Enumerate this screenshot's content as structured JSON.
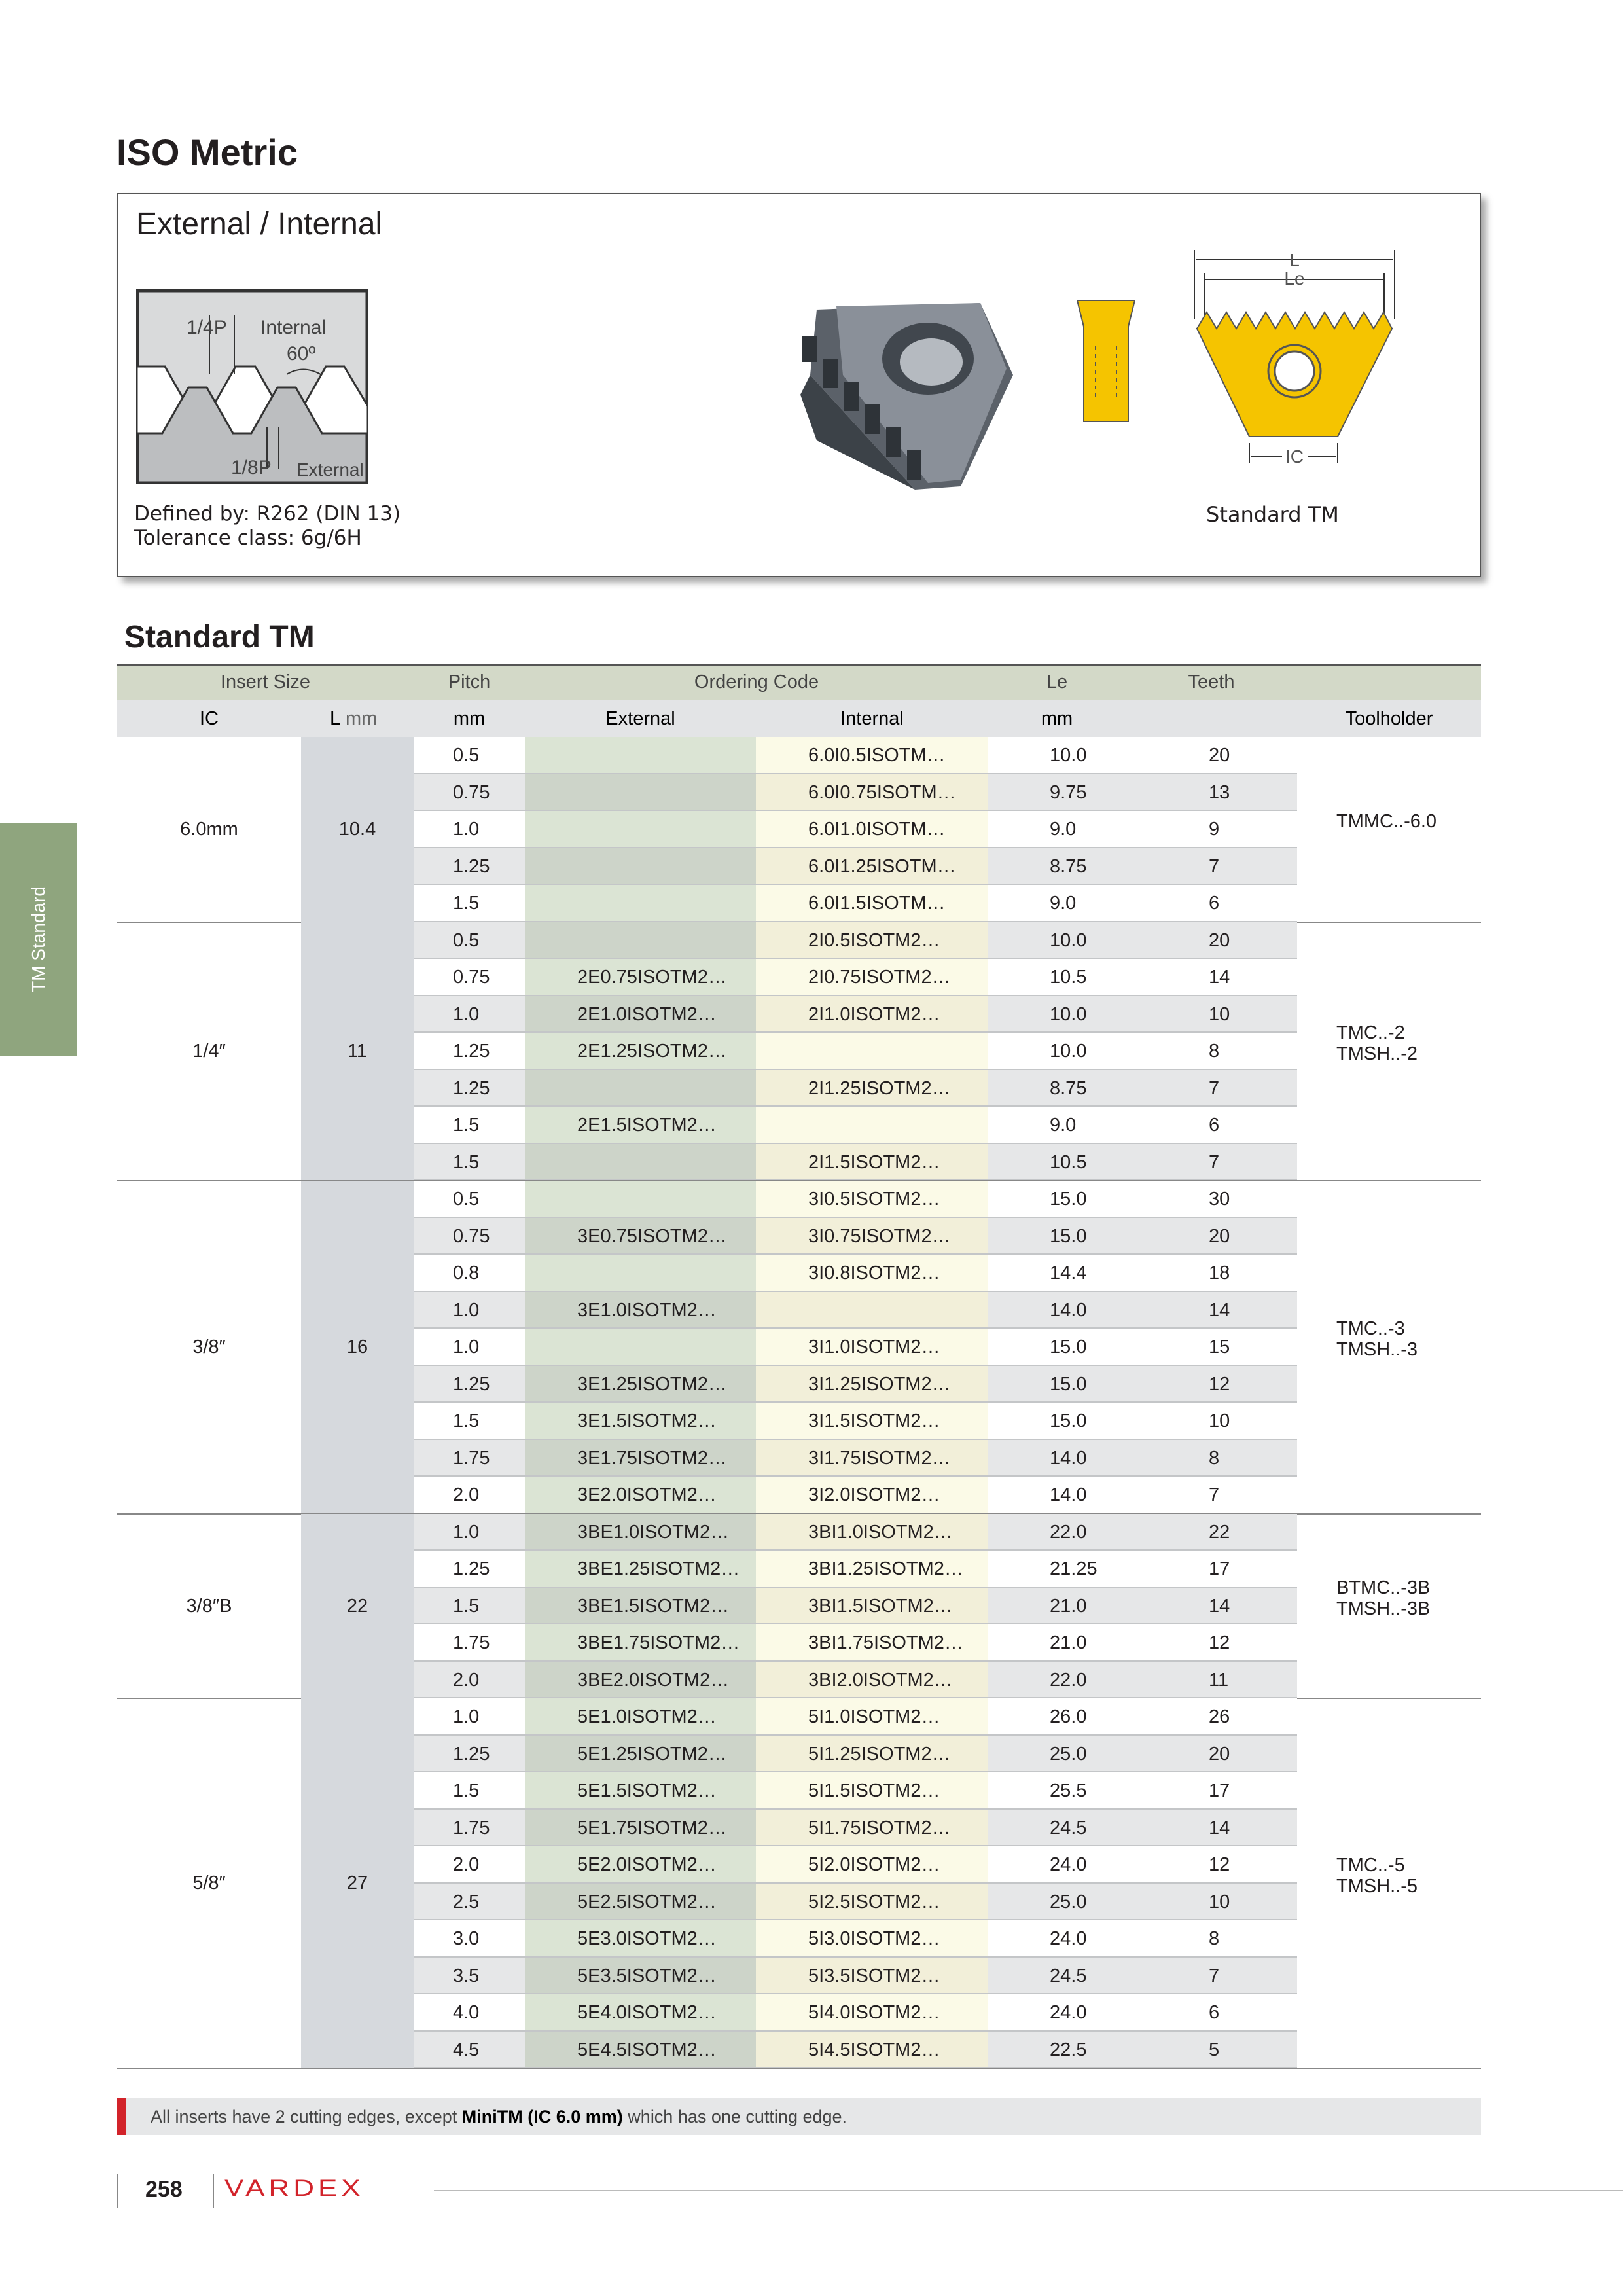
{
  "header": {
    "title": "ISO Metric"
  },
  "box": {
    "title": "External / Internal",
    "diagram": {
      "quarter_pitch": "1/4P",
      "internal": "Internal",
      "angle": "60º",
      "eighth_pitch": "1/8P",
      "external": "External"
    },
    "defined_by": "Defined by: R262 (DIN 13)",
    "tolerance": "Tolerance class: 6g/6H",
    "insert": {
      "l": "L",
      "le": "Le",
      "ic": "IC",
      "caption": "Standard TM"
    }
  },
  "side_tab": "TM Standard",
  "table": {
    "title": "Standard TM",
    "header1": {
      "insert_size": "Insert Size",
      "pitch": "Pitch",
      "ordering_code": "Ordering Code",
      "le": "Le",
      "teeth": "Teeth"
    },
    "header2": {
      "ic": "IC",
      "l": "L",
      "l_unit": "mm",
      "pitch_unit": "mm",
      "external": "External",
      "internal": "Internal",
      "le_unit": "mm",
      "toolholder": "Toolholder"
    },
    "groups": [
      {
        "ic": "6.0mm",
        "l": "10.4",
        "toolholder": [
          "TMMC..-6.0"
        ],
        "rows": [
          {
            "pitch": "0.5",
            "external": null,
            "internal": "6.0I0.5ISOTM…",
            "le": "10.0",
            "teeth": "20"
          },
          {
            "pitch": "0.75",
            "external": null,
            "internal": "6.0I0.75ISOTM…",
            "le": "9.75",
            "teeth": "13"
          },
          {
            "pitch": "1.0",
            "external": null,
            "internal": "6.0I1.0ISOTM…",
            "le": "9.0",
            "teeth": "9"
          },
          {
            "pitch": "1.25",
            "external": null,
            "internal": "6.0I1.25ISOTM…",
            "le": "8.75",
            "teeth": "7"
          },
          {
            "pitch": "1.5",
            "external": null,
            "internal": "6.0I1.5ISOTM…",
            "le": "9.0",
            "teeth": "6"
          }
        ]
      },
      {
        "ic": "1/4″",
        "l": "11",
        "toolholder": [
          "TMC..-2",
          "TMSH..-2"
        ],
        "rows": [
          {
            "pitch": "0.5",
            "external": null,
            "internal": "2I0.5ISOTM2…",
            "le": "10.0",
            "teeth": "20"
          },
          {
            "pitch": "0.75",
            "external": "2E0.75ISOTM2…",
            "internal": "2I0.75ISOTM2…",
            "le": "10.5",
            "teeth": "14"
          },
          {
            "pitch": "1.0",
            "external": "2E1.0ISOTM2…",
            "internal": "2I1.0ISOTM2…",
            "le": "10.0",
            "teeth": "10"
          },
          {
            "pitch": "1.25",
            "external": "2E1.25ISOTM2…",
            "internal": null,
            "le": "10.0",
            "teeth": "8"
          },
          {
            "pitch": "1.25",
            "external": null,
            "internal": "2I1.25ISOTM2…",
            "le": "8.75",
            "teeth": "7"
          },
          {
            "pitch": "1.5",
            "external": "2E1.5ISOTM2…",
            "internal": null,
            "le": "9.0",
            "teeth": "6"
          },
          {
            "pitch": "1.5",
            "external": null,
            "internal": "2I1.5ISOTM2…",
            "le": "10.5",
            "teeth": "7"
          }
        ]
      },
      {
        "ic": "3/8″",
        "l": "16",
        "toolholder": [
          "TMC..-3",
          "TMSH..-3"
        ],
        "rows": [
          {
            "pitch": "0.5",
            "external": null,
            "internal": "3I0.5ISOTM2…",
            "le": "15.0",
            "teeth": "30"
          },
          {
            "pitch": "0.75",
            "external": "3E0.75ISOTM2…",
            "internal": "3I0.75ISOTM2…",
            "le": "15.0",
            "teeth": "20"
          },
          {
            "pitch": "0.8",
            "external": null,
            "internal": "3I0.8ISOTM2…",
            "le": "14.4",
            "teeth": "18"
          },
          {
            "pitch": "1.0",
            "external": "3E1.0ISOTM2…",
            "internal": null,
            "le": "14.0",
            "teeth": "14"
          },
          {
            "pitch": "1.0",
            "external": null,
            "internal": "3I1.0ISOTM2…",
            "le": "15.0",
            "teeth": "15"
          },
          {
            "pitch": "1.25",
            "external": "3E1.25ISOTM2…",
            "internal": "3I1.25ISOTM2…",
            "le": "15.0",
            "teeth": "12"
          },
          {
            "pitch": "1.5",
            "external": "3E1.5ISOTM2…",
            "internal": "3I1.5ISOTM2…",
            "le": "15.0",
            "teeth": "10"
          },
          {
            "pitch": "1.75",
            "external": "3E1.75ISOTM2…",
            "internal": "3I1.75ISOTM2…",
            "le": "14.0",
            "teeth": "8"
          },
          {
            "pitch": "2.0",
            "external": "3E2.0ISOTM2…",
            "internal": "3I2.0ISOTM2…",
            "le": "14.0",
            "teeth": "7"
          }
        ]
      },
      {
        "ic": "3/8″B",
        "l": "22",
        "toolholder": [
          "BTMC..-3B",
          "TMSH..-3B"
        ],
        "rows": [
          {
            "pitch": "1.0",
            "external": "3BE1.0ISOTM2…",
            "internal": "3BI1.0ISOTM2…",
            "le": "22.0",
            "teeth": "22"
          },
          {
            "pitch": "1.25",
            "external": "3BE1.25ISOTM2…",
            "internal": "3BI1.25ISOTM2…",
            "le": "21.25",
            "teeth": "17"
          },
          {
            "pitch": "1.5",
            "external": "3BE1.5ISOTM2…",
            "internal": "3BI1.5ISOTM2…",
            "le": "21.0",
            "teeth": "14"
          },
          {
            "pitch": "1.75",
            "external": "3BE1.75ISOTM2…",
            "internal": "3BI1.75ISOTM2…",
            "le": "21.0",
            "teeth": "12"
          },
          {
            "pitch": "2.0",
            "external": "3BE2.0ISOTM2…",
            "internal": "3BI2.0ISOTM2…",
            "le": "22.0",
            "teeth": "11"
          }
        ]
      },
      {
        "ic": "5/8″",
        "l": "27",
        "toolholder": [
          "TMC..-5",
          "TMSH..-5"
        ],
        "rows": [
          {
            "pitch": "1.0",
            "external": "5E1.0ISOTM2…",
            "internal": "5I1.0ISOTM2…",
            "le": "26.0",
            "teeth": "26"
          },
          {
            "pitch": "1.25",
            "external": "5E1.25ISOTM2…",
            "internal": "5I1.25ISOTM2…",
            "le": "25.0",
            "teeth": "20"
          },
          {
            "pitch": "1.5",
            "external": "5E1.5ISOTM2…",
            "internal": "5I1.5ISOTM2…",
            "le": "25.5",
            "teeth": "17"
          },
          {
            "pitch": "1.75",
            "external": "5E1.75ISOTM2…",
            "internal": "5I1.75ISOTM2…",
            "le": "24.5",
            "teeth": "14"
          },
          {
            "pitch": "2.0",
            "external": "5E2.0ISOTM2…",
            "internal": "5I2.0ISOTM2…",
            "le": "24.0",
            "teeth": "12"
          },
          {
            "pitch": "2.5",
            "external": "5E2.5ISOTM2…",
            "internal": "5I2.5ISOTM2…",
            "le": "25.0",
            "teeth": "10"
          },
          {
            "pitch": "3.0",
            "external": "5E3.0ISOTM2…",
            "internal": "5I3.0ISOTM2…",
            "le": "24.0",
            "teeth": "8"
          },
          {
            "pitch": "3.5",
            "external": "5E3.5ISOTM2…",
            "internal": "5I3.5ISOTM2…",
            "le": "24.5",
            "teeth": "7"
          },
          {
            "pitch": "4.0",
            "external": "5E4.0ISOTM2…",
            "internal": "5I4.0ISOTM2…",
            "le": "24.0",
            "teeth": "6"
          },
          {
            "pitch": "4.5",
            "external": "5E4.5ISOTM2…",
            "internal": "5I4.5ISOTM2…",
            "le": "22.5",
            "teeth": "5"
          }
        ]
      }
    ]
  },
  "note": {
    "before": "All inserts have 2 cutting edges, except ",
    "highlight": "MiniTM (IC 6.0 mm)",
    "after": " which has one cutting edge."
  },
  "footer": {
    "page": "258",
    "brand": "VARDEX"
  }
}
